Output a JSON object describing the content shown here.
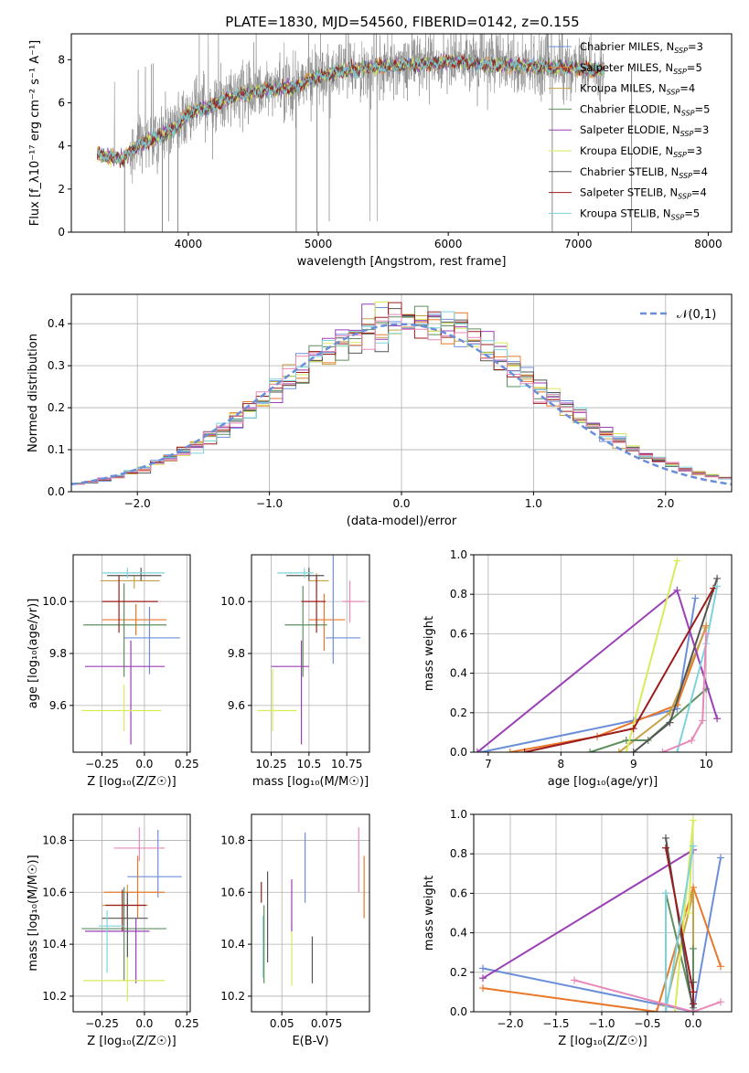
{
  "title": "PLATE=1830, MJD=54560, FIBERID=0142, z=0.155",
  "colors": {
    "Chabrier MILES": "#6a8fd8",
    "Salpeter MILES": "#e8782a",
    "Kroupa MILES": "#c5a24a",
    "Chabrier ELODIE": "#5f8f5f",
    "Salpeter ELODIE": "#9a3fb5",
    "Kroupa ELODIE": "#d9ea5a",
    "Chabrier STELIB": "#555555",
    "Salpeter STELIB": "#9b1c1c",
    "Kroupa STELIB": "#7dd3dc",
    "pink": "#e888b8",
    "data": "#888888"
  },
  "chart_data": [
    {
      "type": "line",
      "xlabel": "wavelength [Angstrom, rest frame]",
      "ylabel": "Flux [f_λ10⁻¹⁷ erg cm⁻² s⁻¹ A⁻¹]",
      "xlim": [
        3100,
        8180
      ],
      "ylim": [
        0,
        9.2
      ],
      "xticks": [
        4000,
        5000,
        6000,
        7000,
        8000
      ],
      "yticks": [
        0,
        2,
        4,
        6,
        8
      ],
      "legend_position": "upper-right",
      "legend": [
        {
          "name": "Chabrier MILES",
          "n": "3"
        },
        {
          "name": "Salpeter MILES",
          "n": "5"
        },
        {
          "name": "Kroupa MILES",
          "n": "4"
        },
        {
          "name": "Chabrier ELODIE",
          "n": "5"
        },
        {
          "name": "Salpeter ELODIE",
          "n": "3"
        },
        {
          "name": "Kroupa ELODIE",
          "n": "3"
        },
        {
          "name": "Chabrier STELIB",
          "n": "4"
        },
        {
          "name": "Salpeter STELIB",
          "n": "4"
        },
        {
          "name": "Kroupa STELIB",
          "n": "5"
        }
      ],
      "continuum": [
        [
          3300,
          3.6
        ],
        [
          3500,
          3.4
        ],
        [
          3600,
          4.0
        ],
        [
          3800,
          4.5
        ],
        [
          3900,
          4.8
        ],
        [
          4000,
          5.5
        ],
        [
          4200,
          5.9
        ],
        [
          4400,
          6.4
        ],
        [
          4600,
          6.6
        ],
        [
          4800,
          6.7
        ],
        [
          5000,
          7.2
        ],
        [
          5200,
          7.5
        ],
        [
          5500,
          7.7
        ],
        [
          5800,
          7.8
        ],
        [
          6000,
          7.9
        ],
        [
          6300,
          7.8
        ],
        [
          6600,
          7.7
        ],
        [
          7000,
          7.6
        ],
        [
          7200,
          7.5
        ]
      ]
    },
    {
      "type": "bar",
      "xlabel": "(data-model)/error",
      "ylabel": "Normed distribution",
      "xlim": [
        -2.5,
        2.5
      ],
      "ylim": [
        0,
        0.47
      ],
      "xticks": [
        -2,
        -1,
        0,
        1,
        2
      ],
      "yticks": [
        0.0,
        0.1,
        0.2,
        0.3,
        0.4
      ],
      "legend": "𝒩(0,1)",
      "bin_width": 0.1
    },
    {
      "type": "scatter",
      "name": "age-vs-Z",
      "xlabel": "Z [log₁₀(Z/Z☉)]",
      "ylabel": "age  [log₁₀(age/yr)]",
      "xlim": [
        -0.42,
        0.27
      ],
      "ylim": [
        9.42,
        10.18
      ],
      "xticks": [
        -0.25,
        0.0,
        0.25
      ],
      "yticks": [
        9.6,
        9.8,
        10.0
      ],
      "points": [
        {
          "c": "Chabrier MILES",
          "x": 0.03,
          "xerr": [
            0.15,
            0.18
          ],
          "y": 9.86,
          "yerr": [
            0.14,
            0.12
          ]
        },
        {
          "c": "Salpeter MILES",
          "x": -0.05,
          "xerr": [
            0.2,
            0.18
          ],
          "y": 9.93,
          "yerr": [
            0.06,
            0.06
          ]
        },
        {
          "c": "Kroupa MILES",
          "x": -0.06,
          "xerr": [
            0.2,
            0.15
          ],
          "y": 10.08,
          "yerr": [
            0.03,
            0.02
          ]
        },
        {
          "c": "Chabrier ELODIE",
          "x": -0.12,
          "xerr": [
            0.24,
            0.25
          ],
          "y": 9.91,
          "yerr": [
            0.2,
            0.16
          ]
        },
        {
          "c": "Salpeter ELODIE",
          "x": -0.08,
          "xerr": [
            0.27,
            0.2
          ],
          "y": 9.75,
          "yerr": [
            0.3,
            0.1
          ]
        },
        {
          "c": "Kroupa ELODIE",
          "x": -0.12,
          "xerr": [
            0.25,
            0.22
          ],
          "y": 9.58,
          "yerr": [
            0.08,
            0.1
          ]
        },
        {
          "c": "Chabrier STELIB",
          "x": -0.02,
          "xerr": [
            0.2,
            0.12
          ],
          "y": 10.1,
          "yerr": [
            0.02,
            0.03
          ]
        },
        {
          "c": "Salpeter STELIB",
          "x": -0.15,
          "xerr": [
            0.1,
            0.23
          ],
          "y": 10.0,
          "yerr": [
            0.12,
            0.1
          ]
        },
        {
          "c": "Kroupa STELIB",
          "x": -0.1,
          "xerr": [
            0.15,
            0.22
          ],
          "y": 10.11,
          "yerr": [
            0.02,
            0.02
          ]
        }
      ]
    },
    {
      "type": "scatter",
      "name": "age-vs-mass",
      "xlabel": "mass [log₁₀(M/M☉)]",
      "ylabel": "",
      "xlim": [
        10.12,
        10.9
      ],
      "ylim": [
        9.42,
        10.18
      ],
      "xticks": [
        10.25,
        10.5,
        10.75
      ],
      "yticks": [
        9.6,
        9.8,
        10.0
      ],
      "points": [
        {
          "c": "Chabrier MILES",
          "x": 10.66,
          "xerr": [
            0.05,
            0.18
          ],
          "y": 9.86,
          "yerr": [
            0.1,
            0.32
          ]
        },
        {
          "c": "Salpeter MILES",
          "x": 10.6,
          "xerr": [
            0.1,
            0.14
          ],
          "y": 9.93,
          "yerr": [
            0.12,
            0.1
          ]
        },
        {
          "c": "Kroupa MILES",
          "x": 10.55,
          "xerr": [
            0.05,
            0.08
          ],
          "y": 10.08,
          "yerr": [
            0.02,
            0.03
          ]
        },
        {
          "c": "Chabrier ELODIE",
          "x": 10.46,
          "xerr": [
            0.12,
            0.16
          ],
          "y": 9.91,
          "yerr": [
            0.2,
            0.15
          ]
        },
        {
          "c": "Salpeter ELODIE",
          "x": 10.45,
          "xerr": [
            0.2,
            0.05
          ],
          "y": 9.75,
          "yerr": [
            0.3,
            0.1
          ]
        },
        {
          "c": "Kroupa ELODIE",
          "x": 10.26,
          "xerr": [
            0.1,
            0.16
          ],
          "y": 9.58,
          "yerr": [
            0.08,
            0.16
          ]
        },
        {
          "c": "Chabrier STELIB",
          "x": 10.5,
          "xerr": [
            0.15,
            0.1
          ],
          "y": 10.1,
          "yerr": [
            0.02,
            0.03
          ]
        },
        {
          "c": "Salpeter STELIB",
          "x": 10.55,
          "xerr": [
            0.1,
            0.06
          ],
          "y": 10.0,
          "yerr": [
            0.12,
            0.1
          ]
        },
        {
          "c": "Kroupa STELIB",
          "x": 10.47,
          "xerr": [
            0.18,
            0.06
          ],
          "y": 10.11,
          "yerr": [
            0.02,
            0.02
          ]
        },
        {
          "c": "pink",
          "x": 10.77,
          "xerr": [
            0.05,
            0.1
          ],
          "y": 10.0,
          "yerr": [
            0.08,
            0.08
          ]
        }
      ]
    },
    {
      "type": "line",
      "name": "mass-weight-vs-age",
      "xlabel": "age  [log₁₀(age/yr)]",
      "ylabel": "mass weight",
      "xlim": [
        6.8,
        10.35
      ],
      "ylim": [
        0,
        1.0
      ],
      "xticks": [
        7,
        8,
        9,
        10
      ],
      "yticks": [
        0.0,
        0.2,
        0.4,
        0.6,
        0.8,
        1.0
      ],
      "series": [
        {
          "c": "Chabrier MILES",
          "points": [
            [
              6.9,
              0.0
            ],
            [
              9.0,
              0.16
            ],
            [
              9.6,
              0.22
            ],
            [
              9.85,
              0.78
            ]
          ]
        },
        {
          "c": "Salpeter MILES",
          "points": [
            [
              7.3,
              0.0
            ],
            [
              8.5,
              0.08
            ],
            [
              9.6,
              0.24
            ],
            [
              10.0,
              0.64
            ]
          ]
        },
        {
          "c": "Kroupa MILES",
          "points": [
            [
              8.8,
              0.0
            ],
            [
              9.5,
              0.2
            ],
            [
              10.0,
              0.63
            ]
          ]
        },
        {
          "c": "Chabrier ELODIE",
          "points": [
            [
              8.4,
              0.0
            ],
            [
              8.9,
              0.06
            ],
            [
              9.2,
              0.06
            ],
            [
              10.0,
              0.32
            ]
          ]
        },
        {
          "c": "Salpeter ELODIE",
          "points": [
            [
              6.85,
              0.0
            ],
            [
              9.6,
              0.82
            ],
            [
              10.15,
              0.17
            ]
          ]
        },
        {
          "c": "Kroupa ELODIE",
          "points": [
            [
              8.9,
              0.0
            ],
            [
              9.6,
              0.97
            ]
          ]
        },
        {
          "c": "Chabrier STELIB",
          "points": [
            [
              9.0,
              0.0
            ],
            [
              9.5,
              0.15
            ],
            [
              10.15,
              0.88
            ]
          ]
        },
        {
          "c": "Salpeter STELIB",
          "points": [
            [
              7.5,
              0.0
            ],
            [
              9.0,
              0.12
            ],
            [
              10.1,
              0.83
            ]
          ]
        },
        {
          "c": "Kroupa STELIB",
          "points": [
            [
              9.6,
              0.0
            ],
            [
              10.0,
              0.55
            ],
            [
              10.15,
              0.84
            ]
          ]
        },
        {
          "c": "pink",
          "points": [
            [
              9.4,
              0.0
            ],
            [
              9.8,
              0.06
            ],
            [
              9.95,
              0.16
            ],
            [
              10.0,
              0.6
            ]
          ]
        }
      ]
    },
    {
      "type": "scatter",
      "name": "mass-vs-Z",
      "xlabel": "Z [log₁₀(Z/Z☉)]",
      "ylabel": "mass [log₁₀(M/M☉)]",
      "xlim": [
        -0.42,
        0.27
      ],
      "ylim": [
        10.14,
        10.9
      ],
      "xticks": [
        -0.25,
        0.0,
        0.25
      ],
      "yticks": [
        10.2,
        10.4,
        10.6,
        10.8
      ],
      "points": [
        {
          "c": "Chabrier MILES",
          "x": 0.08,
          "xerr": [
            0.18,
            0.14
          ],
          "y": 10.66,
          "yerr": [
            0.08,
            0.18
          ]
        },
        {
          "c": "Salpeter MILES",
          "x": -0.04,
          "xerr": [
            0.2,
            0.16
          ],
          "y": 10.6,
          "yerr": [
            0.1,
            0.14
          ]
        },
        {
          "c": "Kroupa MILES",
          "x": -0.1,
          "xerr": [
            0.15,
            0.12
          ],
          "y": 10.55,
          "yerr": [
            0.05,
            0.08
          ]
        },
        {
          "c": "Chabrier ELODIE",
          "x": -0.12,
          "xerr": [
            0.25,
            0.25
          ],
          "y": 10.46,
          "yerr": [
            0.2,
            0.16
          ]
        },
        {
          "c": "Salpeter ELODIE",
          "x": -0.05,
          "xerr": [
            0.3,
            0.08
          ],
          "y": 10.45,
          "yerr": [
            0.2,
            0.05
          ]
        },
        {
          "c": "Kroupa ELODIE",
          "x": -0.1,
          "xerr": [
            0.26,
            0.22
          ],
          "y": 10.26,
          "yerr": [
            0.08,
            0.16
          ]
        },
        {
          "c": "Chabrier STELIB",
          "x": -0.1,
          "xerr": [
            0.15,
            0.12
          ],
          "y": 10.5,
          "yerr": [
            0.15,
            0.1
          ]
        },
        {
          "c": "Salpeter STELIB",
          "x": -0.13,
          "xerr": [
            0.1,
            0.14
          ],
          "y": 10.55,
          "yerr": [
            0.1,
            0.06
          ]
        },
        {
          "c": "Kroupa STELIB",
          "x": -0.22,
          "xerr": [
            0.05,
            0.1
          ],
          "y": 10.47,
          "yerr": [
            0.18,
            0.06
          ]
        },
        {
          "c": "pink",
          "x": -0.03,
          "xerr": [
            0.15,
            0.15
          ],
          "y": 10.77,
          "yerr": [
            0.05,
            0.08
          ]
        }
      ]
    },
    {
      "type": "scatter",
      "name": "mass-vs-EBV",
      "xlabel": "E(B-V)",
      "ylabel": "",
      "xlim": [
        0.033,
        0.099
      ],
      "ylim": [
        10.14,
        10.9
      ],
      "xticks": [
        0.05,
        0.075
      ],
      "yticks": [
        10.2,
        10.4,
        10.6,
        10.8
      ],
      "points": [
        {
          "c": "Salpeter STELIB",
          "x": 0.0385,
          "yerr": [
            0.04,
            0.04
          ],
          "y": 10.6
        },
        {
          "c": "Kroupa STELIB",
          "x": 0.0395,
          "yerr": [
            0.16,
            0.08
          ],
          "y": 10.43
        },
        {
          "c": "Chabrier ELODIE",
          "x": 0.04,
          "yerr": [
            0.15,
            0.15
          ],
          "y": 10.4
        },
        {
          "c": "Chabrier STELIB",
          "x": 0.042,
          "yerr": [
            0.17,
            0.18
          ],
          "y": 10.5
        },
        {
          "c": "Kroupa ELODIE",
          "x": 0.0555,
          "yerr": [
            0.12,
            0.12
          ],
          "y": 10.36
        },
        {
          "c": "Salpeter ELODIE",
          "x": 0.0555,
          "yerr": [
            0.1,
            0.1
          ],
          "y": 10.55
        },
        {
          "c": "Chabrier MILES",
          "x": 0.063,
          "yerr": [
            0.1,
            0.17
          ],
          "y": 10.66
        },
        {
          "c": "Chabrier STELIB",
          "x": 0.067,
          "yerr": [
            0.09,
            0.09
          ],
          "y": 10.34
        },
        {
          "c": "pink",
          "x": 0.093,
          "yerr": [
            0.2,
            0.05
          ],
          "y": 10.8
        },
        {
          "c": "Salpeter MILES",
          "x": 0.096,
          "yerr": [
            0.12,
            0.12
          ],
          "y": 10.62
        }
      ]
    },
    {
      "type": "line",
      "name": "mass-weight-vs-Z",
      "xlabel": "Z [log₁₀(Z/Z☉)]",
      "ylabel": "mass weight",
      "xlim": [
        -2.4,
        0.42
      ],
      "ylim": [
        0,
        1.0
      ],
      "xticks": [
        -2.0,
        -1.5,
        -1.0,
        -0.5,
        0.0
      ],
      "yticks": [
        0.0,
        0.2,
        0.4,
        0.6,
        0.8,
        1.0
      ],
      "series": [
        {
          "c": "Chabrier MILES",
          "points": [
            [
              -2.3,
              0.22
            ],
            [
              -0.3,
              0.03
            ],
            [
              0.0,
              0.0
            ],
            [
              0.3,
              0.78
            ]
          ]
        },
        {
          "c": "Salpeter MILES",
          "points": [
            [
              -2.3,
              0.12
            ],
            [
              -0.4,
              0.0
            ],
            [
              0.0,
              0.63
            ],
            [
              0.3,
              0.23
            ]
          ]
        },
        {
          "c": "Kroupa MILES",
          "points": [
            [
              -0.3,
              0.03
            ],
            [
              0.0,
              0.6
            ],
            [
              0.0,
              0.0
            ]
          ]
        },
        {
          "c": "Chabrier ELODIE",
          "points": [
            [
              -0.3,
              0.6
            ],
            [
              0.0,
              0.02
            ],
            [
              0.0,
              0.32
            ]
          ]
        },
        {
          "c": "Salpeter ELODIE",
          "points": [
            [
              -2.3,
              0.17
            ],
            [
              0.0,
              0.82
            ]
          ]
        },
        {
          "c": "Kroupa ELODIE",
          "points": [
            [
              -0.2,
              0.0
            ],
            [
              0.0,
              0.97
            ],
            [
              -0.05,
              0.5
            ]
          ]
        },
        {
          "c": "Chabrier STELIB",
          "points": [
            [
              -0.3,
              0.88
            ],
            [
              0.0,
              0.0
            ],
            [
              0.0,
              0.15
            ]
          ]
        },
        {
          "c": "Salpeter STELIB",
          "points": [
            [
              -0.3,
              0.83
            ],
            [
              0.0,
              0.1
            ],
            [
              0.0,
              0.04
            ]
          ]
        },
        {
          "c": "Kroupa STELIB",
          "points": [
            [
              -0.3,
              0.6
            ],
            [
              -0.3,
              0.0
            ],
            [
              0.0,
              0.84
            ]
          ]
        },
        {
          "c": "pink",
          "points": [
            [
              -1.3,
              0.16
            ],
            [
              0.0,
              0.0
            ],
            [
              0.3,
              0.05
            ]
          ]
        }
      ]
    }
  ]
}
